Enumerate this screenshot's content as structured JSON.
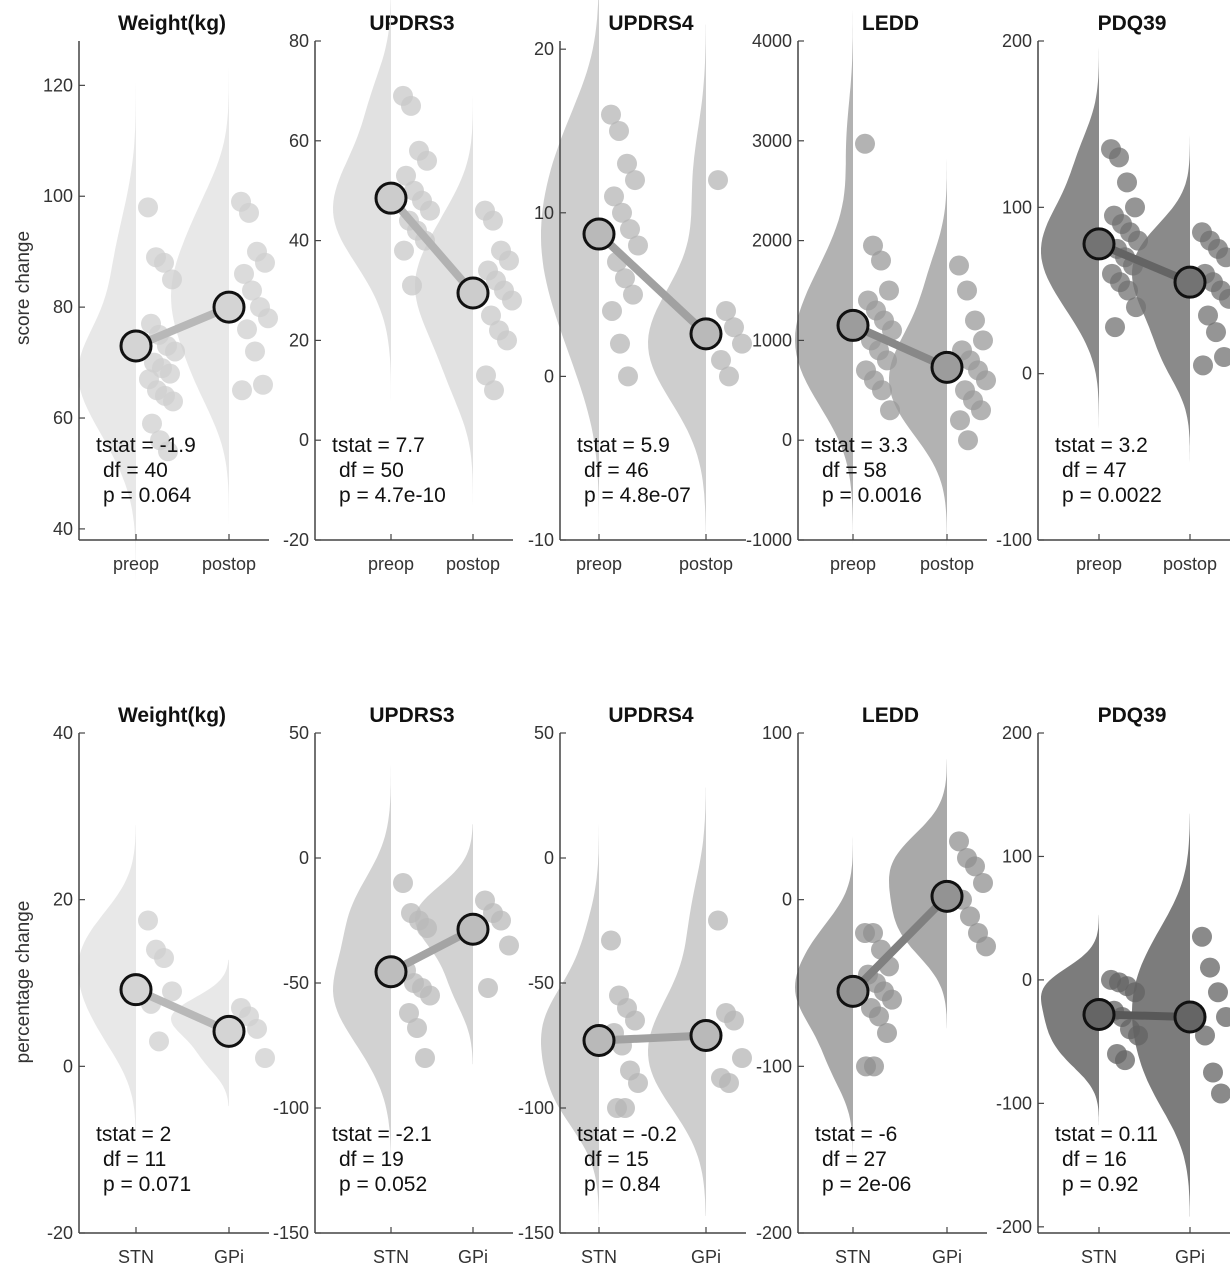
{
  "chart_data": [
    {
      "type": "raincloud",
      "row": 0,
      "title": "Weight(kg)",
      "ylabel": "score change",
      "categories": [
        "preop",
        "postop"
      ],
      "ylim": [
        38,
        128
      ],
      "yticks": [
        40,
        60,
        80,
        100,
        120
      ],
      "color": "#e6e6e6",
      "mean": [
        73,
        80
      ],
      "points": [
        [
          98,
          89,
          88,
          85,
          77,
          75,
          73,
          72,
          70,
          69,
          68,
          67,
          65,
          64,
          63,
          59,
          56,
          54
        ],
        [
          99,
          97,
          90,
          88,
          86,
          83,
          80,
          78,
          76,
          72,
          66,
          65
        ]
      ],
      "stats": {
        "tstat": "tstat = -1.9",
        "df": "df = 40",
        "p": "p = 0.064"
      }
    },
    {
      "type": "raincloud",
      "row": 0,
      "title": "UPDRS3",
      "ylabel": "",
      "categories": [
        "preop",
        "postop"
      ],
      "ylim": [
        -20,
        80
      ],
      "yticks": [
        -20,
        0,
        20,
        40,
        60,
        80
      ],
      "color": "#dedede",
      "mean": [
        48.5,
        29.5
      ],
      "points": [
        [
          69,
          67,
          58,
          56,
          53,
          50,
          48,
          46,
          44,
          42,
          40,
          38,
          31
        ],
        [
          46,
          44,
          38,
          36,
          34,
          32,
          30,
          28,
          25,
          22,
          20,
          13,
          10
        ]
      ],
      "stats": {
        "tstat": "tstat = 7.7",
        "df": "df = 50",
        "p": "p = 4.7e-10"
      }
    },
    {
      "type": "raincloud",
      "row": 0,
      "title": "UPDRS4",
      "ylabel": "",
      "categories": [
        "preop",
        "postop"
      ],
      "ylim": [
        -10,
        20.5
      ],
      "yticks": [
        -10,
        0,
        10,
        20
      ],
      "color": "#c9c9c9",
      "mean": [
        8.7,
        2.6
      ],
      "points": [
        [
          16,
          15,
          13,
          12,
          11,
          10,
          9,
          8,
          7,
          6,
          5,
          4,
          2,
          0
        ],
        [
          12,
          4,
          3,
          2,
          1,
          0
        ]
      ],
      "stats": {
        "tstat": "tstat = 5.9",
        "df": "df = 46",
        "p": "p = 4.8e-07"
      }
    },
    {
      "type": "raincloud",
      "row": 0,
      "title": "LEDD",
      "ylabel": "",
      "categories": [
        "preop",
        "postop"
      ],
      "ylim": [
        -1000,
        4000
      ],
      "yticks": [
        -1000,
        0,
        1000,
        2000,
        3000,
        4000
      ],
      "color": "#aaaaaa",
      "mean": [
        1150,
        730
      ],
      "points": [
        [
          2970,
          1950,
          1800,
          1500,
          1400,
          1300,
          1200,
          1100,
          1000,
          900,
          800,
          700,
          600,
          500,
          300
        ],
        [
          1750,
          1500,
          1200,
          1000,
          900,
          800,
          700,
          600,
          500,
          400,
          300,
          200,
          0
        ]
      ],
      "stats": {
        "tstat": "tstat = 3.3",
        "df": "df = 58",
        "p": "p = 0.0016"
      }
    },
    {
      "type": "raincloud",
      "row": 0,
      "title": "PDQ39",
      "ylabel": "",
      "categories": [
        "preop",
        "postop"
      ],
      "ylim": [
        -100,
        200
      ],
      "yticks": [
        -100,
        0,
        100,
        200
      ],
      "color": "#7d7d7d",
      "mean": [
        78,
        55
      ],
      "points": [
        [
          135,
          130,
          115,
          100,
          95,
          90,
          85,
          80,
          75,
          70,
          65,
          60,
          55,
          50,
          40,
          28
        ],
        [
          85,
          80,
          75,
          70,
          60,
          55,
          50,
          45,
          35,
          25,
          10,
          5
        ]
      ],
      "stats": {
        "tstat": "tstat = 3.2",
        "df": "df = 47",
        "p": "p = 0.0022"
      }
    },
    {
      "type": "raincloud",
      "row": 1,
      "title": "Weight(kg)",
      "ylabel": "percentage change",
      "categories": [
        "STN",
        "GPi"
      ],
      "ylim": [
        -20,
        40
      ],
      "yticks": [
        -20,
        0,
        20,
        40
      ],
      "color": "#e6e6e6",
      "mean": [
        9.2,
        4.2
      ],
      "points": [
        [
          17.5,
          14,
          13,
          9,
          7.5,
          3
        ],
        [
          7,
          6,
          4.5,
          1
        ]
      ],
      "stats": {
        "tstat": "tstat = 2",
        "df": "df = 11",
        "p": "p = 0.071"
      }
    },
    {
      "type": "raincloud",
      "row": 1,
      "title": "UPDRS3",
      "ylabel": "",
      "categories": [
        "STN",
        "GPi"
      ],
      "ylim": [
        -150,
        50
      ],
      "yticks": [
        -150,
        -100,
        -50,
        0,
        50
      ],
      "color": "#cdcdcd",
      "mean": [
        -45.5,
        -28.5
      ],
      "points": [
        [
          -10,
          -22,
          -25,
          -28,
          -45,
          -50,
          -52,
          -55,
          -62,
          -68,
          -80
        ],
        [
          -17,
          -22,
          -25,
          -35,
          -52
        ]
      ],
      "stats": {
        "tstat": "tstat = -2.1",
        "df": "df = 19",
        "p": "p = 0.052"
      }
    },
    {
      "type": "raincloud",
      "row": 1,
      "title": "UPDRS4",
      "ylabel": "",
      "categories": [
        "STN",
        "GPi"
      ],
      "ylim": [
        -150,
        50
      ],
      "yticks": [
        -150,
        -100,
        -50,
        0,
        50
      ],
      "color": "#c9c9c9",
      "mean": [
        -73,
        -71
      ],
      "points": [
        [
          -33,
          -55,
          -60,
          -65,
          -70,
          -75,
          -85,
          -90,
          -100,
          -100
        ],
        [
          -25,
          -62,
          -65,
          -80,
          -88,
          -90
        ]
      ],
      "stats": {
        "tstat": "tstat = -0.2",
        "df": "df = 15",
        "p": "p = 0.84"
      }
    },
    {
      "type": "raincloud",
      "row": 1,
      "title": "LEDD",
      "ylabel": "",
      "categories": [
        "STN",
        "GPi"
      ],
      "ylim": [
        -200,
        100
      ],
      "yticks": [
        -200,
        -100,
        0,
        100
      ],
      "color": "#a0a0a0",
      "mean": [
        -55,
        2
      ],
      "points": [
        [
          -20,
          -20,
          -30,
          -40,
          -45,
          -50,
          -55,
          -60,
          -65,
          -70,
          -80,
          -100,
          -100
        ],
        [
          35,
          25,
          20,
          10,
          0,
          -10,
          -20,
          -28
        ]
      ],
      "stats": {
        "tstat": "tstat = -6",
        "df": "df = 27",
        "p": "p = 2e-06"
      }
    },
    {
      "type": "raincloud",
      "row": 1,
      "title": "PDQ39",
      "ylabel": "",
      "categories": [
        "STN",
        "GPi"
      ],
      "ylim": [
        -205,
        200
      ],
      "yticks": [
        -200,
        -100,
        0,
        100,
        200
      ],
      "color": "#6e6e6e",
      "mean": [
        -28,
        -30
      ],
      "points": [
        [
          0,
          -2,
          -5,
          -10,
          -25,
          -30,
          -40,
          -45,
          -60,
          -65
        ],
        [
          35,
          10,
          -10,
          -30,
          -45,
          -75,
          -92
        ]
      ],
      "stats": {
        "tstat": "tstat = 0.11",
        "df": "df = 16",
        "p": "p = 0.92"
      }
    }
  ]
}
